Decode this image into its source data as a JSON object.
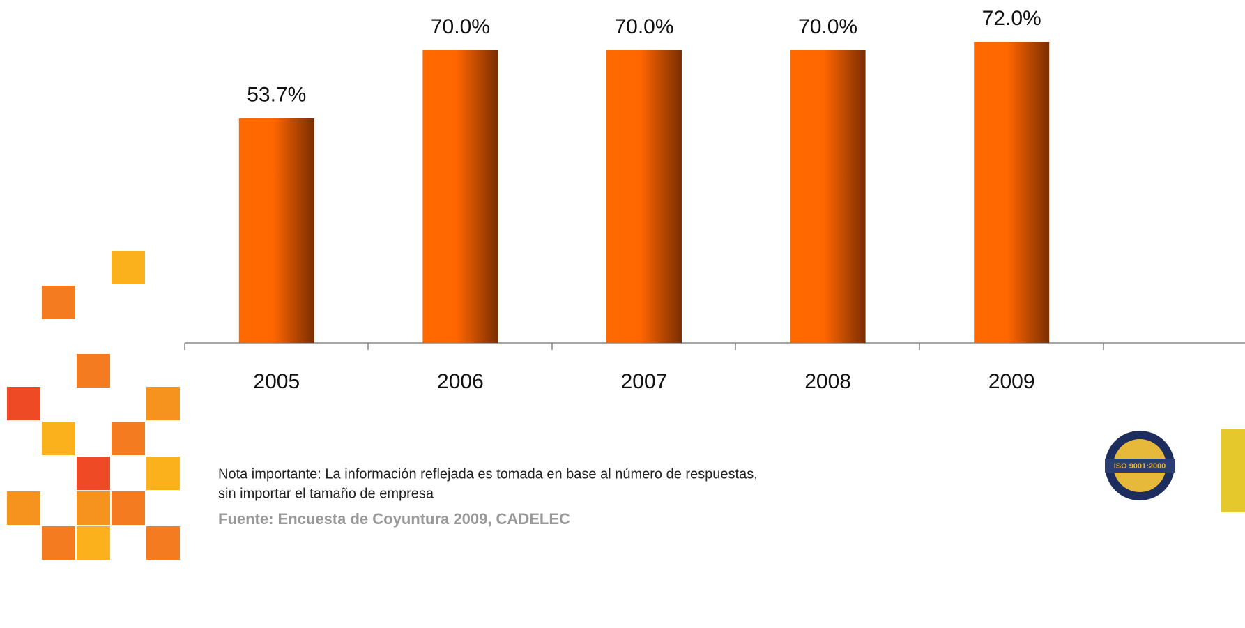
{
  "chart_data": {
    "type": "bar",
    "categories": [
      "2005",
      "2006",
      "2007",
      "2008",
      "2009"
    ],
    "values": [
      53.7,
      70.0,
      70.0,
      70.0,
      72.0
    ],
    "value_labels": [
      "53.7%",
      "70.0%",
      "70.0%",
      "70.0%",
      "72.0%"
    ],
    "color": "#ff6600",
    "ylim": [
      0,
      82
    ]
  },
  "note": [
    "Nota importante: La información reflejada es tomada en base al número de respuestas,",
    "sin importar el tamaño de empresa"
  ],
  "source": "Fuente: Encuesta de Coyuntura 2009, CADELEC",
  "badge": "ISO 9001:2000"
}
